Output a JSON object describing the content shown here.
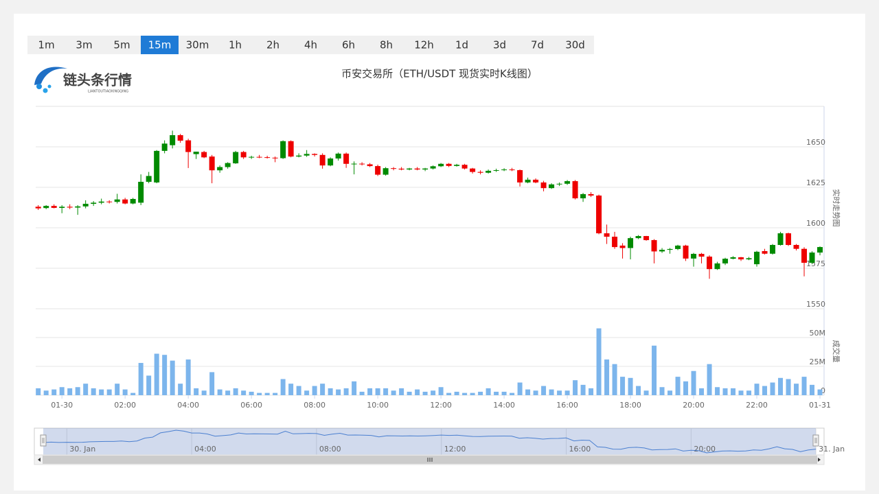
{
  "toolbar": {
    "buttons": [
      "1m",
      "3m",
      "5m",
      "15m",
      "30m",
      "1h",
      "2h",
      "4h",
      "6h",
      "8h",
      "12h",
      "1d",
      "3d",
      "7d",
      "30d"
    ],
    "active": 3
  },
  "logo": {
    "name": "链头条行情",
    "subtitle": "LIANTOUTIAOXINGQING"
  },
  "chart_data": {
    "type": "candlestick",
    "title": "币安交易所（ETH/USDT 现货实时K线图）",
    "y_axis_label": "实时走势图",
    "volume_axis_label": "成交量",
    "up_color": "#008a00",
    "down_color": "#ee0000",
    "volume_color": "#7cb5ec",
    "grid": true,
    "xlim": [
      -0.83,
      24.13
    ],
    "xticks": [
      {
        "value": 0,
        "label": "01-30"
      },
      {
        "value": 2,
        "label": "02:00"
      },
      {
        "value": 4,
        "label": "04:00"
      },
      {
        "value": 6,
        "label": "06:00"
      },
      {
        "value": 8,
        "label": "08:00"
      },
      {
        "value": 10,
        "label": "10:00"
      },
      {
        "value": 12,
        "label": "12:00"
      },
      {
        "value": 14,
        "label": "14:00"
      },
      {
        "value": 16,
        "label": "16:00"
      },
      {
        "value": 18,
        "label": "18:00"
      },
      {
        "value": 20,
        "label": "20:00"
      },
      {
        "value": 22,
        "label": "22:00"
      },
      {
        "value": 24,
        "label": "01-31"
      }
    ],
    "ylim": [
      1550,
      1675
    ],
    "yticks": [
      1550,
      1575,
      1600,
      1625,
      1650
    ],
    "volume_ylim": [
      0,
      75
    ],
    "volume_yticks": [
      0,
      {
        "value": 25,
        "label": "25M"
      },
      {
        "value": 50,
        "label": "50M"
      }
    ],
    "x": [
      -0.75,
      -0.5,
      -0.25,
      0,
      0.25,
      0.5,
      0.75,
      1,
      1.25,
      1.5,
      1.75,
      2,
      2.25,
      2.5,
      2.75,
      3,
      3.25,
      3.5,
      3.75,
      4,
      4.25,
      4.5,
      4.75,
      5,
      5.25,
      5.5,
      5.75,
      6,
      6.25,
      6.5,
      6.75,
      7,
      7.25,
      7.5,
      7.75,
      8,
      8.25,
      8.5,
      8.75,
      9,
      9.25,
      9.5,
      9.75,
      10,
      10.25,
      10.5,
      10.75,
      11,
      11.25,
      11.5,
      11.75,
      12,
      12.25,
      12.5,
      12.75,
      13,
      13.25,
      13.5,
      13.75,
      14,
      14.25,
      14.5,
      14.75,
      15,
      15.25,
      15.5,
      15.75,
      16,
      16.25,
      16.5,
      16.75,
      17,
      17.25,
      17.5,
      17.75,
      18,
      18.25,
      18.5,
      18.75,
      19,
      19.25,
      19.5,
      19.75,
      20,
      20.25,
      20.5,
      20.75,
      21,
      21.25,
      21.5,
      21.75,
      22,
      22.25,
      22.5,
      22.75,
      23,
      23.25,
      23.5,
      23.75,
      24
    ],
    "open": [
      1613.0,
      1612.2,
      1613.5,
      1612.3,
      1613.0,
      1612.5,
      1613.2,
      1614.8,
      1615.5,
      1616.2,
      1616.0,
      1617.5,
      1615.0,
      1615.5,
      1628.4,
      1628.0,
      1647.5,
      1651.0,
      1657.2,
      1654.0,
      1645.5,
      1646.8,
      1644.0,
      1635.5,
      1637.5,
      1639.8,
      1646.8,
      1643.5,
      1643.8,
      1643.6,
      1643.3,
      1643.0,
      1653.5,
      1644.0,
      1644.6,
      1645.6,
      1645.0,
      1638.5,
      1642.8,
      1645.8,
      1639.5,
      1639.6,
      1639.2,
      1638.1,
      1632.8,
      1636.8,
      1636.5,
      1636.0,
      1636.6,
      1636.0,
      1636.6,
      1638.0,
      1639.5,
      1638.2,
      1638.9,
      1636.6,
      1634.5,
      1634.0,
      1635.2,
      1635.6,
      1636.0,
      1635.6,
      1628.0,
      1629.7,
      1628.0,
      1624.5,
      1626.8,
      1627.2,
      1628.8,
      1618.2,
      1620.8,
      1619.9,
      1596.6,
      1594.5,
      1589.0,
      1587.5,
      1593.6,
      1594.9,
      1592.4,
      1585.4,
      1586.4,
      1586.9,
      1589.0,
      1581.0,
      1583.9,
      1582.2,
      1574.5,
      1578.0,
      1580.9,
      1581.8,
      1580.5,
      1577.5,
      1585.6,
      1584.0,
      1589.4,
      1596.6,
      1589.4,
      1587.0,
      1578.4,
      1584.7
    ],
    "high": [
      1614,
      1614,
      1614.5,
      1614,
      1614.5,
      1614,
      1617,
      1616.5,
      1618,
      1617,
      1621,
      1618.5,
      1618.5,
      1633,
      1634.5,
      1648,
      1654,
      1660,
      1658,
      1655,
      1647,
      1647.5,
      1645,
      1638.5,
      1640.5,
      1647.5,
      1647.5,
      1644.5,
      1645,
      1644.5,
      1644,
      1654,
      1654,
      1646,
      1648,
      1646,
      1646,
      1643.5,
      1646.5,
      1646.5,
      1641,
      1640.5,
      1640,
      1639,
      1637.5,
      1637.5,
      1637.5,
      1637,
      1637.5,
      1637,
      1638.5,
      1640,
      1640,
      1639.5,
      1639.5,
      1637,
      1635.5,
      1636,
      1636.5,
      1636.8,
      1637,
      1636,
      1631,
      1630.5,
      1629,
      1627.5,
      1628,
      1629.5,
      1629.5,
      1621.5,
      1622,
      1620.5,
      1602,
      1597.5,
      1590.5,
      1594.5,
      1595.5,
      1595,
      1593,
      1587.5,
      1587.5,
      1589.5,
      1589.5,
      1584.5,
      1584.5,
      1583,
      1579,
      1581.5,
      1582.5,
      1582,
      1582,
      1585.8,
      1587,
      1590,
      1597.5,
      1597,
      1590,
      1588,
      1585.5,
      1588.5
    ],
    "low": [
      1611,
      1611.5,
      1612,
      1609,
      1611.5,
      1608,
      1612,
      1613.5,
      1614.5,
      1615,
      1615,
      1614.5,
      1614.5,
      1614,
      1627.5,
      1627.5,
      1646,
      1649,
      1652.5,
      1636.9,
      1642.5,
      1643,
      1627.5,
      1634,
      1636.5,
      1639.5,
      1642.5,
      1642.5,
      1643,
      1642.8,
      1640.5,
      1642.5,
      1643.5,
      1643.5,
      1643.8,
      1644,
      1636.5,
      1638,
      1641.5,
      1637,
      1633,
      1638.5,
      1637.5,
      1632,
      1632.2,
      1635.5,
      1635.5,
      1635.5,
      1635.5,
      1635,
      1636,
      1637.5,
      1637.5,
      1637.8,
      1636,
      1633.5,
      1633,
      1633.5,
      1634.5,
      1635,
      1635,
      1625.5,
      1627.5,
      1627.5,
      1622.5,
      1624,
      1625.8,
      1626.5,
      1617.5,
      1616,
      1619,
      1596,
      1590,
      1587,
      1581,
      1580.5,
      1593,
      1592,
      1578,
      1584.5,
      1584,
      1586.2,
      1579.5,
      1576,
      1578,
      1568.5,
      1574,
      1577,
      1580.5,
      1579.5,
      1580,
      1576,
      1583.5,
      1583.5,
      1589,
      1588.8,
      1586,
      1570,
      1577.5,
      1583
    ],
    "close": [
      1612.0,
      1613.5,
      1612.3,
      1613.0,
      1612.5,
      1613.2,
      1614.8,
      1615.5,
      1616.2,
      1616.0,
      1617.5,
      1615.0,
      1617.8,
      1628.4,
      1632.0,
      1647.5,
      1652.0,
      1657.2,
      1653.8,
      1646.8,
      1647.0,
      1643.5,
      1635.5,
      1637.5,
      1640.0,
      1646.8,
      1643.5,
      1643.8,
      1643.6,
      1643.3,
      1643.0,
      1653.5,
      1644.0,
      1644.6,
      1645.6,
      1645.0,
      1638.5,
      1642.8,
      1645.8,
      1639.5,
      1639.6,
      1639.2,
      1638.1,
      1632.8,
      1636.8,
      1636.5,
      1636.0,
      1636.6,
      1636.0,
      1636.6,
      1638.0,
      1639.5,
      1638.2,
      1638.9,
      1636.6,
      1634.5,
      1634.0,
      1635.2,
      1635.6,
      1636.0,
      1635.6,
      1628.0,
      1629.7,
      1628.0,
      1624.5,
      1626.8,
      1627.2,
      1628.8,
      1618.2,
      1620.8,
      1619.9,
      1596.6,
      1594.5,
      1588.1,
      1587.5,
      1593.6,
      1594.9,
      1592.4,
      1585.4,
      1586.4,
      1586.9,
      1589.0,
      1581.0,
      1583.9,
      1582.2,
      1574.5,
      1578.0,
      1580.9,
      1581.8,
      1580.5,
      1581.2,
      1585.2,
      1584.0,
      1589.4,
      1596.6,
      1589.4,
      1587.0,
      1578.4,
      1584.7,
      1588.1
    ],
    "volume": [
      6,
      4,
      5,
      7,
      6,
      7,
      10,
      6,
      5,
      5,
      10,
      5,
      2,
      28,
      17,
      36,
      35,
      30,
      10,
      31,
      6,
      4,
      20,
      5,
      4,
      6,
      4,
      3,
      2,
      2,
      2,
      14,
      10,
      8,
      4,
      8,
      10,
      6,
      5,
      6,
      12,
      3,
      6,
      6,
      6,
      4,
      6,
      3,
      5,
      3,
      4,
      7,
      2,
      3,
      2,
      2,
      3,
      6,
      3,
      3,
      2,
      11,
      5,
      4,
      8,
      5,
      4,
      4,
      13,
      9,
      6,
      58,
      31,
      27,
      16,
      15,
      8,
      4,
      43,
      7,
      4,
      16,
      12,
      21,
      6,
      27,
      7,
      6,
      6,
      4,
      4,
      10,
      8,
      11,
      15,
      14,
      10,
      16,
      9,
      5
    ],
    "navigator": {
      "xlim": [
        -1.04,
        24.26
      ],
      "xticks": [
        {
          "value": 0,
          "label": "30. Jan"
        },
        {
          "value": 4,
          "label": "04:00"
        },
        {
          "value": 8,
          "label": "08:00"
        },
        {
          "value": 12,
          "label": "12:00"
        },
        {
          "value": 16,
          "label": "16:00"
        },
        {
          "value": 20,
          "label": "20:00"
        },
        {
          "value": 24,
          "label": "31. Jan"
        }
      ]
    }
  }
}
